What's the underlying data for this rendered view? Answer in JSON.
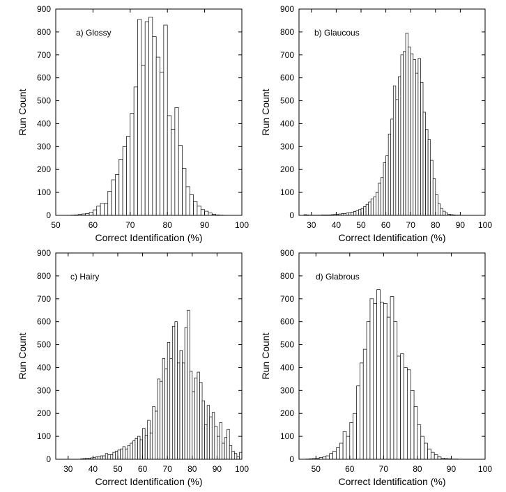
{
  "chart_data": [
    {
      "type": "bar",
      "panel_label": "a) Glossy",
      "xlabel": "Correct Identification (%)",
      "ylabel": "Run Count",
      "xlim": [
        50,
        100
      ],
      "ylim": [
        0,
        900
      ],
      "xticks": [
        50,
        60,
        70,
        80,
        90,
        100
      ],
      "yticks": [
        0,
        100,
        200,
        300,
        400,
        500,
        600,
        700,
        800,
        900
      ],
      "bin_width": 1,
      "bins_start": [
        54,
        55,
        56,
        57,
        58,
        59,
        60,
        61,
        62,
        63,
        64,
        65,
        66,
        67,
        68,
        69,
        70,
        71,
        72,
        73,
        74,
        75,
        76,
        77,
        78,
        79,
        80,
        81,
        82,
        83,
        84,
        85,
        86,
        87,
        88,
        89,
        90,
        91,
        92,
        93,
        94
      ],
      "values": [
        1,
        2,
        4,
        6,
        8,
        13,
        24,
        40,
        52,
        50,
        105,
        155,
        178,
        245,
        300,
        345,
        445,
        560,
        855,
        655,
        845,
        865,
        780,
        690,
        625,
        830,
        435,
        375,
        470,
        305,
        205,
        125,
        90,
        60,
        40,
        25,
        18,
        10,
        5,
        2,
        1
      ]
    },
    {
      "type": "bar",
      "panel_label": "b) Glaucous",
      "xlabel": "Correct Identification (%)",
      "ylabel": "Run Count",
      "xlim": [
        25,
        100
      ],
      "ylim": [
        0,
        900
      ],
      "xticks": [
        30,
        40,
        50,
        60,
        70,
        80,
        90,
        100
      ],
      "yticks": [
        0,
        100,
        200,
        300,
        400,
        500,
        600,
        700,
        800,
        900
      ],
      "bin_width": 1,
      "bins_start": [
        27,
        28,
        29,
        30,
        31,
        32,
        33,
        34,
        35,
        36,
        37,
        38,
        39,
        40,
        41,
        42,
        43,
        44,
        45,
        46,
        47,
        48,
        49,
        50,
        51,
        52,
        53,
        54,
        55,
        56,
        57,
        58,
        59,
        60,
        61,
        62,
        63,
        64,
        65,
        66,
        67,
        68,
        69,
        70,
        71,
        72,
        73,
        74,
        75,
        76,
        77,
        78,
        79,
        80,
        81,
        82,
        83,
        84,
        85,
        86,
        87,
        88,
        89
      ],
      "values": [
        3,
        2,
        1,
        1,
        1,
        1,
        1,
        2,
        2,
        2,
        2,
        3,
        4,
        5,
        6,
        7,
        8,
        10,
        12,
        14,
        17,
        20,
        25,
        30,
        38,
        48,
        58,
        72,
        80,
        100,
        140,
        165,
        230,
        260,
        355,
        420,
        565,
        505,
        605,
        700,
        715,
        795,
        735,
        705,
        680,
        620,
        685,
        580,
        450,
        375,
        330,
        240,
        160,
        90,
        50,
        30,
        18,
        10,
        5,
        3,
        2,
        1,
        1
      ]
    },
    {
      "type": "bar",
      "panel_label": "c) Hairy",
      "xlabel": "Correct Identification (%)",
      "ylabel": "Run Count",
      "xlim": [
        25,
        100
      ],
      "ylim": [
        0,
        900
      ],
      "xticks": [
        30,
        40,
        50,
        60,
        70,
        80,
        90,
        100
      ],
      "yticks": [
        0,
        100,
        200,
        300,
        400,
        500,
        600,
        700,
        800,
        900
      ],
      "bin_width": 1,
      "bins_start": [
        35,
        36,
        37,
        38,
        39,
        40,
        41,
        42,
        43,
        44,
        45,
        46,
        47,
        48,
        49,
        50,
        51,
        52,
        53,
        54,
        55,
        56,
        57,
        58,
        59,
        60,
        61,
        62,
        63,
        64,
        65,
        66,
        67,
        68,
        69,
        70,
        71,
        72,
        73,
        74,
        75,
        76,
        77,
        78,
        79,
        80,
        81,
        82,
        83,
        84,
        85,
        86,
        87,
        88,
        89,
        90,
        91,
        92,
        93,
        94,
        95,
        96,
        97,
        98,
        99
      ],
      "values": [
        2,
        3,
        4,
        5,
        6,
        8,
        10,
        12,
        15,
        15,
        25,
        20,
        20,
        30,
        35,
        40,
        45,
        55,
        45,
        60,
        70,
        80,
        90,
        100,
        85,
        135,
        105,
        170,
        115,
        230,
        210,
        350,
        340,
        440,
        395,
        510,
        440,
        580,
        600,
        420,
        475,
        420,
        575,
        650,
        385,
        295,
        355,
        380,
        335,
        255,
        150,
        235,
        185,
        205,
        145,
        100,
        160,
        70,
        95,
        130,
        60,
        35,
        25,
        10,
        30
      ]
    },
    {
      "type": "bar",
      "panel_label": "d) Glabrous",
      "xlabel": "Correct Identification (%)",
      "ylabel": "Run Count",
      "xlim": [
        45,
        100
      ],
      "ylim": [
        0,
        900
      ],
      "xticks": [
        50,
        60,
        70,
        80,
        90,
        100
      ],
      "yticks": [
        0,
        100,
        200,
        300,
        400,
        500,
        600,
        700,
        800,
        900
      ],
      "bin_width": 1,
      "bins_start": [
        47,
        48,
        49,
        50,
        51,
        52,
        53,
        54,
        55,
        56,
        57,
        58,
        59,
        60,
        61,
        62,
        63,
        64,
        65,
        66,
        67,
        68,
        69,
        70,
        71,
        72,
        73,
        74,
        75,
        76,
        77,
        78,
        79,
        80,
        81,
        82,
        83,
        84,
        85,
        86,
        87,
        88,
        89,
        90,
        91
      ],
      "values": [
        1,
        2,
        3,
        5,
        8,
        10,
        15,
        25,
        35,
        50,
        70,
        120,
        100,
        160,
        200,
        320,
        420,
        480,
        600,
        700,
        680,
        740,
        685,
        680,
        620,
        710,
        600,
        450,
        460,
        400,
        390,
        300,
        230,
        150,
        100,
        70,
        45,
        30,
        20,
        10,
        5,
        3,
        2,
        1,
        1
      ]
    }
  ]
}
